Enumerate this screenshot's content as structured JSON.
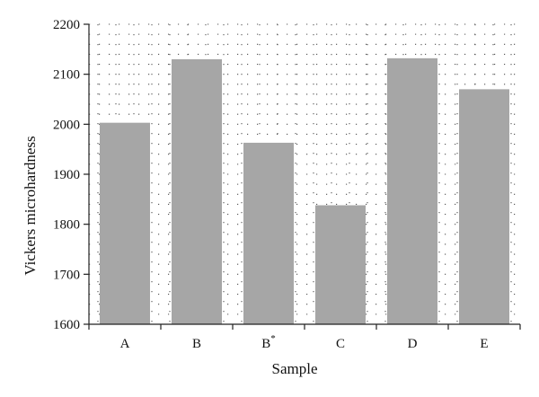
{
  "chart_data": {
    "type": "bar",
    "title": "",
    "xlabel": "Sample",
    "ylabel": "Vickers microhardness",
    "categories": [
      "A",
      "B",
      "B*",
      "C",
      "D",
      "E"
    ],
    "category_labels": [
      {
        "base": "A",
        "sup": ""
      },
      {
        "base": "B",
        "sup": ""
      },
      {
        "base": "B",
        "sup": "*"
      },
      {
        "base": "C",
        "sup": ""
      },
      {
        "base": "D",
        "sup": ""
      },
      {
        "base": "E",
        "sup": ""
      }
    ],
    "values": [
      2003,
      2130,
      1963,
      1838,
      2132,
      2070
    ],
    "ylim": [
      1600,
      2200
    ],
    "yticks": [
      1600,
      1700,
      1800,
      1900,
      2000,
      2100,
      2200
    ],
    "grid": "dotted",
    "bar_color": "#a6a6a6",
    "grid_color": "#555555"
  }
}
